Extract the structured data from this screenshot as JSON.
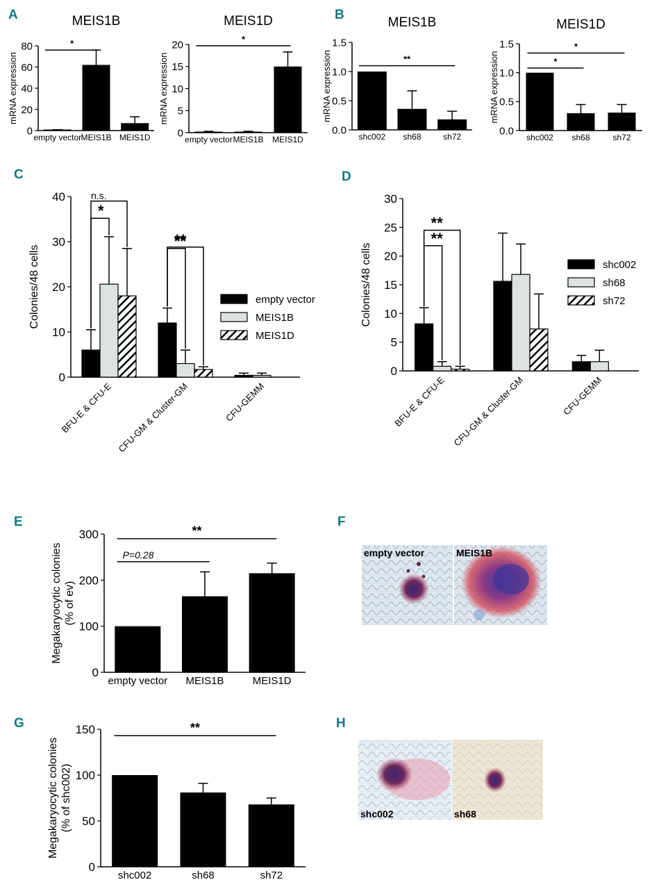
{
  "colors": {
    "panel_label": "#0f7a82",
    "bar_black": "#000000",
    "bar_gray": "#dde3e3",
    "hatch": "#000000"
  },
  "panel_labels": {
    "A": "A",
    "B": "B",
    "C": "C",
    "D": "D",
    "E": "E",
    "F": "F",
    "G": "G",
    "H": "H"
  },
  "chart_data": [
    {
      "id": "A1",
      "panel": "A",
      "type": "bar",
      "title": "MEIS1B",
      "ylabel": "mRNA expression",
      "xlabel": "",
      "categories": [
        "empty vector",
        "MEIS1B",
        "MEIS1D"
      ],
      "values": [
        0.5,
        62,
        7
      ],
      "errors": [
        0.3,
        14,
        6
      ],
      "ylim": [
        0,
        80
      ],
      "yticks": [
        0,
        20,
        40,
        60,
        80
      ],
      "ytick_labels": [
        "0",
        "20",
        "40",
        "60",
        "80"
      ],
      "sig": [
        {
          "from": 0,
          "to": 1,
          "label": "*",
          "y": 76
        }
      ]
    },
    {
      "id": "A2",
      "panel": "A",
      "type": "bar",
      "title": "MEIS1D",
      "ylabel": "mRNA expression",
      "xlabel": "",
      "categories": [
        "empty vector",
        "MEIS1B",
        "MEIS1D"
      ],
      "values": [
        0.2,
        0.2,
        15
      ],
      "errors": [
        0.1,
        0.1,
        3.3
      ],
      "ylim": [
        0,
        20
      ],
      "yticks": [
        0,
        5,
        10,
        15,
        20
      ],
      "ytick_labels": [
        "0",
        "5",
        "10",
        "15",
        "20"
      ],
      "sig": [
        {
          "from": 0,
          "to": 2,
          "label": "*",
          "y": 19.7
        }
      ]
    },
    {
      "id": "B1",
      "panel": "B",
      "type": "bar",
      "title": "MEIS1B",
      "ylabel": "mRNA expression",
      "xlabel": "",
      "categories": [
        "shc002",
        "sh68",
        "sh72"
      ],
      "values": [
        1.0,
        0.36,
        0.18
      ],
      "errors": [
        0,
        0.31,
        0.14
      ],
      "ylim": [
        0,
        1.5
      ],
      "yticks": [
        0,
        0.5,
        1.0,
        1.5
      ],
      "ytick_labels": [
        "0.0",
        "0.5",
        "1.0",
        "1.5"
      ],
      "sig": [
        {
          "from": 0,
          "to": 2,
          "label": "**",
          "y": 1.1
        }
      ]
    },
    {
      "id": "B2",
      "panel": "B",
      "type": "bar",
      "title": "MEIS1D",
      "ylabel": "mRNA expression",
      "xlabel": "",
      "categories": [
        "shc002",
        "sh68",
        "sh72"
      ],
      "values": [
        1.0,
        0.3,
        0.31
      ],
      "errors": [
        0,
        0.15,
        0.14
      ],
      "ylim": [
        0,
        1.5
      ],
      "yticks": [
        0,
        0.5,
        1.0,
        1.5
      ],
      "ytick_labels": [
        "0.0",
        "0.5",
        "1.0",
        "1.5"
      ],
      "sig": [
        {
          "from": 0,
          "to": 1,
          "label": "*",
          "y": 1.08
        },
        {
          "from": 0,
          "to": 2,
          "label": "*",
          "y": 1.34
        }
      ]
    },
    {
      "id": "C",
      "panel": "C",
      "type": "bar",
      "title": "",
      "ylabel": "Colonies/48 cells",
      "xlabel": "",
      "categories": [
        "BFU-E & CFU-E",
        "CFU-GM & Cluster-GM",
        "CFU-GEMM"
      ],
      "series": [
        {
          "name": "empty vector",
          "style": "black",
          "values": [
            6.0,
            12.0,
            0.4
          ],
          "errors": [
            4.5,
            3.3,
            0.5
          ]
        },
        {
          "name": "MEIS1B",
          "style": "gray",
          "values": [
            20.6,
            3.0,
            0.4
          ],
          "errors": [
            10.5,
            3.0,
            0.5
          ]
        },
        {
          "name": "MEIS1D",
          "style": "hatch",
          "values": [
            18.0,
            1.7,
            0
          ],
          "errors": [
            10.5,
            0.6,
            0
          ]
        }
      ],
      "ylim": [
        0,
        40
      ],
      "yticks": [
        0,
        10,
        20,
        30,
        40
      ],
      "ytick_labels": [
        "0",
        "10",
        "20",
        "30",
        "40"
      ],
      "legend": "right",
      "brackets": [
        {
          "cat": 0,
          "from": 0,
          "to": 1,
          "label": "*",
          "y": 35.2
        },
        {
          "cat": 0,
          "from": 0,
          "to": 2,
          "label": "n.s.",
          "y": 39
        },
        {
          "cat": 1,
          "from": 0,
          "to": 1,
          "label": "**",
          "y": 28.5
        },
        {
          "cat": 1,
          "from": 0,
          "to": 2,
          "label": "**",
          "y": 28.8
        }
      ]
    },
    {
      "id": "D",
      "panel": "D",
      "type": "bar",
      "title": "",
      "ylabel": "Colonies/48 cells",
      "xlabel": "",
      "categories": [
        "BFU-E & CFU-E",
        "CFU-GM & Cluster-GM",
        "CFU-GEMM"
      ],
      "series": [
        {
          "name": "shc002",
          "style": "black",
          "values": [
            8.2,
            15.6,
            1.6
          ],
          "errors": [
            2.8,
            8.4,
            1.1
          ]
        },
        {
          "name": "sh68",
          "style": "gray",
          "values": [
            0.8,
            16.8,
            1.6
          ],
          "errors": [
            0.8,
            5.3,
            2.0
          ]
        },
        {
          "name": "sh72",
          "style": "hatch",
          "values": [
            0.3,
            7.3,
            0
          ],
          "errors": [
            0.5,
            6.1,
            0
          ]
        }
      ],
      "ylim": [
        0,
        30
      ],
      "yticks": [
        0,
        5,
        10,
        15,
        20,
        25,
        30
      ],
      "ytick_labels": [
        "0",
        "5",
        "10",
        "15",
        "20",
        "25",
        "30"
      ],
      "legend": "right",
      "brackets": [
        {
          "cat": 0,
          "from": 0,
          "to": 1,
          "label": "**",
          "y": 21.8
        },
        {
          "cat": 0,
          "from": 0,
          "to": 2,
          "label": "**",
          "y": 24.5
        }
      ]
    },
    {
      "id": "E",
      "panel": "E",
      "type": "bar",
      "title": "",
      "ylabel": "Megakaryocytic colonies (% of ev)",
      "xlabel": "",
      "ylabel_lines": [
        "Megakaryocytic colonies",
        "(% of ev)"
      ],
      "categories": [
        "empty vector",
        "MEIS1B",
        "MEIS1D"
      ],
      "values": [
        100,
        165,
        215
      ],
      "errors": [
        0,
        53,
        22
      ],
      "ylim": [
        0,
        300
      ],
      "yticks": [
        0,
        100,
        200,
        300
      ],
      "ytick_labels": [
        "0",
        "100",
        "200",
        "300"
      ],
      "sig": [
        {
          "from": 0,
          "to": 1,
          "label": "P=0.28",
          "y": 240
        },
        {
          "from": 0,
          "to": 2,
          "label": "**",
          "y": 290
        }
      ]
    },
    {
      "id": "G",
      "panel": "G",
      "type": "bar",
      "title": "",
      "ylabel": "Megakaryocytic colonies (% of shc002)",
      "xlabel": "",
      "ylabel_lines": [
        "Megakaryocytic colonies",
        "(% of shc002)"
      ],
      "categories": [
        "shc002",
        "sh68",
        "sh72"
      ],
      "values": [
        100,
        81,
        68
      ],
      "errors": [
        0,
        10,
        7
      ],
      "ylim": [
        0,
        150
      ],
      "yticks": [
        0,
        50,
        100,
        150
      ],
      "ytick_labels": [
        "0",
        "50",
        "100",
        "150"
      ],
      "sig": [
        {
          "from": 0,
          "to": 2,
          "label": "**",
          "y": 143
        }
      ]
    }
  ],
  "micrographs": {
    "F": {
      "left_label": "empty vector",
      "right_label": "MEIS1B"
    },
    "H": {
      "left_label": "shc002",
      "right_label": "sh68"
    }
  }
}
